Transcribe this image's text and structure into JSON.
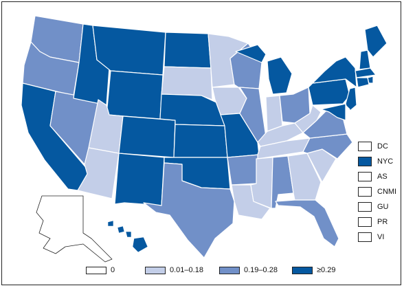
{
  "colors": {
    "c0": "#ffffff",
    "c1": "#c3cee8",
    "c2": "#7190c8",
    "c3": "#0558a0",
    "outline": "#222222"
  },
  "legend": [
    {
      "label": "0",
      "color": "c0"
    },
    {
      "label": "0.01–0.18",
      "color": "c1"
    },
    {
      "label": "0.19–0.28",
      "color": "c2"
    },
    {
      "label": "≥0.29",
      "color": "c3"
    }
  ],
  "territories": [
    {
      "label": "DC",
      "color": "c0"
    },
    {
      "label": "NYC",
      "color": "c3"
    },
    {
      "label": "AS",
      "color": "c0"
    },
    {
      "label": "CNMI",
      "color": "c0"
    },
    {
      "label": "GU",
      "color": "c0"
    },
    {
      "label": "PR",
      "color": "c0"
    },
    {
      "label": "VI",
      "color": "c0"
    }
  ],
  "states": {
    "WA": "c2",
    "OR": "c2",
    "CA": "c3",
    "NV": "c2",
    "ID": "c3",
    "MT": "c3",
    "WY": "c3",
    "UT": "c1",
    "AZ": "c1",
    "CO": "c3",
    "NM": "c3",
    "ND": "c3",
    "SD": "c1",
    "NE": "c3",
    "KS": "c3",
    "OK": "c3",
    "TX": "c2",
    "MN": "c1",
    "IA": "c1",
    "MO": "c3",
    "AR": "c2",
    "LA": "c1",
    "WI": "c2",
    "IL": "c2",
    "MI": "c3",
    "IN": "c1",
    "OH": "c2",
    "KY": "c1",
    "TN": "c1",
    "MS": "c1",
    "AL": "c2",
    "GA": "c1",
    "FL": "c2",
    "SC": "c1",
    "NC": "c2",
    "VA": "c2",
    "WV": "c1",
    "PA": "c3",
    "NY": "c3",
    "VT": "c0",
    "NH": "c3",
    "ME": "c3",
    "MA": "c3",
    "RI": "c3",
    "CT": "c3",
    "NJ": "c3",
    "DE": "c0",
    "MD": "c3",
    "AK": "c0",
    "HI": "c3"
  }
}
